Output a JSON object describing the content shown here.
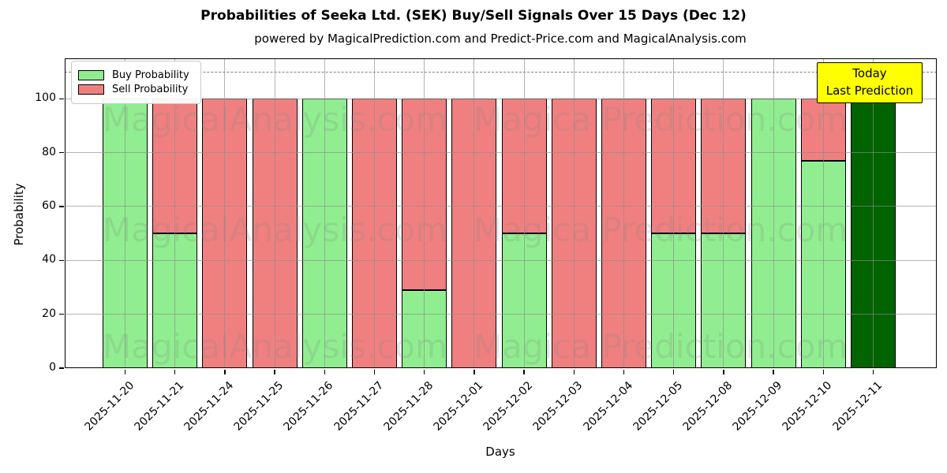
{
  "figure": {
    "title": "Probabilities of Seeka Ltd. (SEK) Buy/Sell Signals Over 15 Days (Dec 12)",
    "subtitle": "powered by MagicalPrediction.com and Predict-Price.com and MagicalAnalysis.com"
  },
  "chart_data": {
    "type": "bar",
    "stacked": true,
    "title": "Probabilities of Seeka Ltd. (SEK) Buy/Sell Signals Over 15 Days (Dec 12)",
    "subtitle": "powered by MagicalPrediction.com and Predict-Price.com and MagicalAnalysis.com",
    "xlabel": "Days",
    "ylabel": "Probability",
    "ylim": [
      0,
      115
    ],
    "yticks": [
      0,
      20,
      40,
      60,
      80,
      100
    ],
    "grid": true,
    "dashed_line_y": 110,
    "categories": [
      "2025-11-20",
      "2025-11-21",
      "2025-11-24",
      "2025-11-25",
      "2025-11-26",
      "2025-11-27",
      "2025-11-28",
      "2025-12-01",
      "2025-12-02",
      "2025-12-03",
      "2025-12-04",
      "2025-12-05",
      "2025-12-08",
      "2025-12-09",
      "2025-12-10",
      "2025-12-11"
    ],
    "series": [
      {
        "name": "Buy Probability",
        "color": "#90EE90",
        "values": [
          100,
          50,
          0,
          0,
          100,
          0,
          29,
          0,
          50,
          0,
          0,
          50,
          50,
          100,
          77,
          100
        ]
      },
      {
        "name": "Sell Probability",
        "color": "#F08080",
        "values": [
          0,
          50,
          100,
          100,
          0,
          100,
          71,
          100,
          50,
          100,
          100,
          50,
          50,
          0,
          23,
          0
        ]
      }
    ],
    "today": {
      "index": 15,
      "category": "2025-12-11",
      "value": 100,
      "color": "#006400",
      "label_line1": "Today",
      "label_line2": "Last Prediction",
      "label_bg": "#FFFF00"
    },
    "legend": {
      "position": "upper-left",
      "entries": [
        {
          "label": "Buy Probability",
          "color": "#90EE90"
        },
        {
          "label": "Sell Probability",
          "color": "#F08080"
        }
      ]
    },
    "watermarks": {
      "left": "MagicalAnalysis.com",
      "right": "Magica Prediction.com",
      "rows": 3
    },
    "colors": {
      "buy": "#90EE90",
      "sell": "#F08080",
      "today_bar": "#006400",
      "bar_edge": "#000000",
      "grid": "#8c8c8c",
      "dashed_line": "#7f7f7f",
      "annotation_bg": "#FFFF00"
    }
  }
}
